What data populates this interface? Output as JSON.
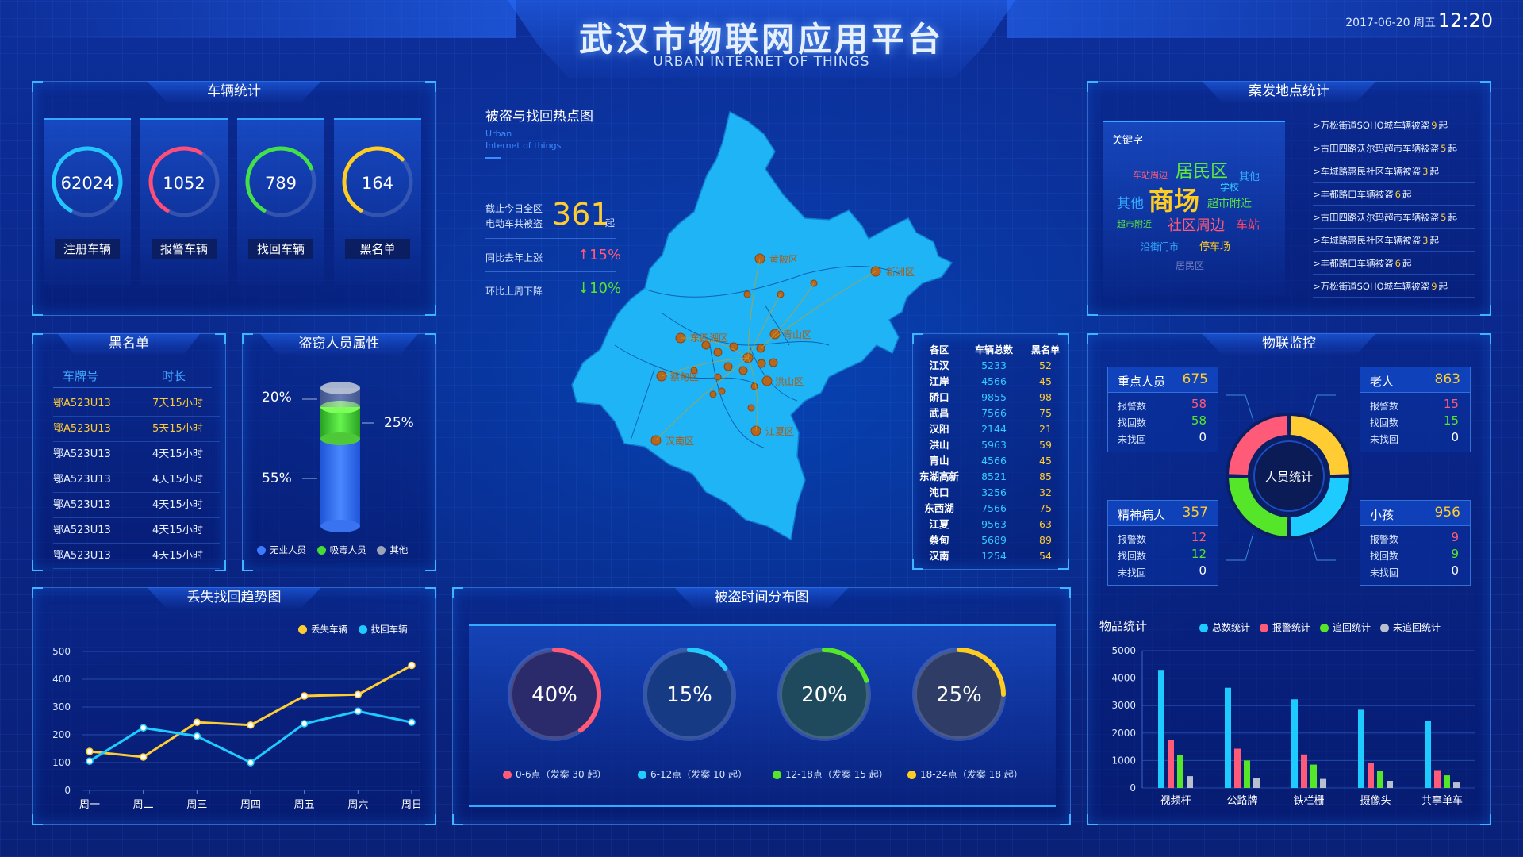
{
  "header": {
    "title": "武汉市物联网应用平台",
    "subtitle": "URBAN INTERNET OF THINGS",
    "date": "2017-06-20  周五",
    "time": "12:20"
  },
  "vehicle_stats": {
    "title": "车辆统计",
    "items": [
      {
        "value": "62024",
        "label": "注册车辆",
        "color": "#22c6ff",
        "fill": 0.75
      },
      {
        "value": "1052",
        "label": "报警车辆",
        "color": "#ff4d7a",
        "fill": 0.5
      },
      {
        "value": "789",
        "label": "找回车辆",
        "color": "#44e04a",
        "fill": 0.6
      },
      {
        "value": "164",
        "label": "黑名单",
        "color": "#ffcc22",
        "fill": 0.55
      }
    ]
  },
  "blacklist": {
    "title": "黑名单",
    "col_plate": "车牌号",
    "col_duration": "时长",
    "rows": [
      {
        "plate": "鄂A523U13",
        "duration": "7天15小时",
        "highlight": true
      },
      {
        "plate": "鄂A523U13",
        "duration": "5天15小时",
        "highlight": true
      },
      {
        "plate": "鄂A523U13",
        "duration": "4天15小时",
        "highlight": false
      },
      {
        "plate": "鄂A523U13",
        "duration": "4天15小时",
        "highlight": false
      },
      {
        "plate": "鄂A523U13",
        "duration": "4天15小时",
        "highlight": false
      },
      {
        "plate": "鄂A523U13",
        "duration": "4天15小时",
        "highlight": false
      },
      {
        "plate": "鄂A523U13",
        "duration": "4天15小时",
        "highlight": false
      }
    ]
  },
  "thief_attr": {
    "title": "盗窃人员属性",
    "pct_top": "20%",
    "pct_right": "25%",
    "pct_bottom": "55%",
    "legend": [
      {
        "label": "无业人员",
        "color": "#3a7bff"
      },
      {
        "label": "吸毒人员",
        "color": "#44dd33"
      },
      {
        "label": "其他",
        "color": "#9aa3b8"
      }
    ]
  },
  "hotmap": {
    "title": "被盗与找回热点图",
    "sub1": "Urban",
    "sub2": "Internet of things",
    "stat1_line1": "截止今日全区",
    "stat1_line2": "电动车共被盗",
    "stat1_value": "361",
    "stat1_unit": "起",
    "stat2_label": "同比去年上涨",
    "stat2_value": "↑15%",
    "stat3_label": "环比上周下降",
    "stat3_value": "↓10%",
    "districts": [
      "黄陂区",
      "新洲区",
      "东西湖区",
      "青山区",
      "蔡甸区",
      "洪山区",
      "江夏区",
      "汉南区"
    ]
  },
  "district_table": {
    "headers": [
      "各区",
      "车辆总数",
      "黑名单"
    ],
    "rows": [
      [
        "江汉",
        "5233",
        "52"
      ],
      [
        "江岸",
        "4566",
        "45"
      ],
      [
        "硚口",
        "9855",
        "98"
      ],
      [
        "武昌",
        "7566",
        "75"
      ],
      [
        "汉阳",
        "2144",
        "21"
      ],
      [
        "洪山",
        "5963",
        "59"
      ],
      [
        "青山",
        "4566",
        "45"
      ],
      [
        "东湖高新",
        "8521",
        "85"
      ],
      [
        "沌口",
        "3256",
        "32"
      ],
      [
        "东西湖",
        "7566",
        "75"
      ],
      [
        "江夏",
        "9563",
        "63"
      ],
      [
        "蔡甸",
        "5689",
        "89"
      ],
      [
        "汉南",
        "1254",
        "54"
      ]
    ]
  },
  "case_locations": {
    "title": "案发地点统计",
    "keyword_label": "关键字",
    "words": [
      {
        "text": "车站周边",
        "color": "#ff5a7a"
      },
      {
        "text": "居民区",
        "color": "#5eea3c"
      },
      {
        "text": "其他",
        "color": "#33aaff"
      },
      {
        "text": "其他",
        "color": "#33aaff"
      },
      {
        "text": "商场",
        "color": "#ffcc22"
      },
      {
        "text": "学校",
        "color": "#33ccff"
      },
      {
        "text": "超市附近",
        "color": "#5eea3c"
      },
      {
        "text": "超市附近",
        "color": "#5eea3c"
      },
      {
        "text": "社区周边",
        "color": "#ff5a7a"
      },
      {
        "text": "车站",
        "color": "#ff4466"
      },
      {
        "text": "沿街门市",
        "color": "#33aaff"
      },
      {
        "text": "停车场",
        "color": "#ffcc22"
      },
      {
        "text": "居民区",
        "color": "#6f7cc0"
      }
    ],
    "list": [
      {
        "text": ">万松街道SOHO城车辆被盗",
        "n": "9",
        "u": "起"
      },
      {
        "text": ">古田四路沃尔玛超市车辆被盗",
        "n": "5",
        "u": "起"
      },
      {
        "text": ">车城路惠民社区车辆被盗",
        "n": "3",
        "u": "起"
      },
      {
        "text": ">丰都路口车辆被盗",
        "n": "6",
        "u": "起"
      },
      {
        "text": ">古田四路沃尔玛超市车辆被盗",
        "n": "5",
        "u": "起"
      },
      {
        "text": ">车城路惠民社区车辆被盗",
        "n": "3",
        "u": "起"
      },
      {
        "text": ">丰都路口车辆被盗",
        "n": "6",
        "u": "起"
      },
      {
        "text": ">万松街道SOHO城车辆被盗",
        "n": "9",
        "u": "起"
      }
    ]
  },
  "monitor": {
    "title": "物联监控",
    "center_label": "人员统计",
    "row_labels": [
      "报警数",
      "找回数",
      "未找回"
    ],
    "cards": [
      {
        "name": "重点人员",
        "value": "675",
        "alarm": "58",
        "found": "58",
        "unfound": "0"
      },
      {
        "name": "老人",
        "value": "863",
        "alarm": "15",
        "found": "15",
        "unfound": "0"
      },
      {
        "name": "精神病人",
        "value": "357",
        "alarm": "12",
        "found": "12",
        "unfound": "0"
      },
      {
        "name": "小孩",
        "value": "956",
        "alarm": "9",
        "found": "9",
        "unfound": "0"
      }
    ]
  },
  "trend": {
    "title": "丢失找回趋势图",
    "legend": [
      {
        "label": "丢失车辆",
        "color": "#ffcc33"
      },
      {
        "label": "找回车辆",
        "color": "#1ecbff"
      }
    ]
  },
  "time_dist": {
    "title": "被盗时间分布图",
    "items": [
      {
        "pct": "40%",
        "fill": 0.4,
        "color": "#ff5a78",
        "bg": "#2b2a6a",
        "label": "0-6点（发案 30 起）"
      },
      {
        "pct": "15%",
        "fill": 0.15,
        "color": "#22ccff",
        "bg": "#173a84",
        "label": "6-12点（发案 10 起）"
      },
      {
        "pct": "20%",
        "fill": 0.2,
        "color": "#55e62a",
        "bg": "#1f4a5e",
        "label": "12-18点（发案 15 起）"
      },
      {
        "pct": "25%",
        "fill": 0.25,
        "color": "#ffcc22",
        "bg": "#2e3c66",
        "label": "18-24点（发案 18 起）"
      }
    ]
  },
  "items_stats": {
    "title": "物品统计",
    "legend": [
      {
        "label": "总数统计",
        "color": "#1ecbff"
      },
      {
        "label": "报警统计",
        "color": "#ff5a78"
      },
      {
        "label": "追回统计",
        "color": "#55e62a"
      },
      {
        "label": "未追回统计",
        "color": "#b8c0d0"
      }
    ]
  },
  "chart_data": [
    {
      "type": "line",
      "title": "丢失找回趋势图",
      "categories": [
        "周一",
        "周二",
        "周三",
        "周四",
        "周五",
        "周六",
        "周日"
      ],
      "ylim": [
        0,
        500
      ],
      "yticks": [
        0,
        100,
        200,
        300,
        400,
        500
      ],
      "grid": true,
      "legend_position": "top-right",
      "series": [
        {
          "name": "丢失车辆",
          "color": "#ffcc33",
          "values": [
            140,
            120,
            245,
            235,
            340,
            345,
            450
          ]
        },
        {
          "name": "找回车辆",
          "color": "#1ecbff",
          "values": [
            105,
            225,
            195,
            100,
            240,
            285,
            245
          ]
        }
      ]
    },
    {
      "type": "bar",
      "title": "物品统计",
      "categories": [
        "视频杆",
        "公路牌",
        "铁栏栅",
        "摄像头",
        "共享单车"
      ],
      "ylim": [
        0,
        5000
      ],
      "yticks": [
        0,
        1000,
        2000,
        3000,
        4000,
        5000
      ],
      "grid": true,
      "legend_position": "top-right",
      "series": [
        {
          "name": "总数统计",
          "color": "#1ecbff",
          "values": [
            4300,
            3650,
            3230,
            2850,
            2450
          ]
        },
        {
          "name": "报警统计",
          "color": "#ff5a78",
          "values": [
            1750,
            1430,
            1220,
            920,
            650
          ]
        },
        {
          "name": "追回统计",
          "color": "#55e62a",
          "values": [
            1200,
            1000,
            850,
            630,
            460
          ]
        },
        {
          "name": "未追回统计",
          "color": "#b8c0d0",
          "values": [
            430,
            370,
            330,
            260,
            200
          ]
        }
      ]
    },
    {
      "type": "pie",
      "title": "盗窃人员属性",
      "categories": [
        "无业人员",
        "吸毒人员",
        "其他"
      ],
      "values": [
        55,
        25,
        20
      ]
    },
    {
      "type": "pie",
      "title": "被盗时间分布图",
      "categories": [
        "0-6点",
        "6-12点",
        "12-18点",
        "18-24点"
      ],
      "values": [
        40,
        15,
        20,
        25
      ]
    }
  ]
}
